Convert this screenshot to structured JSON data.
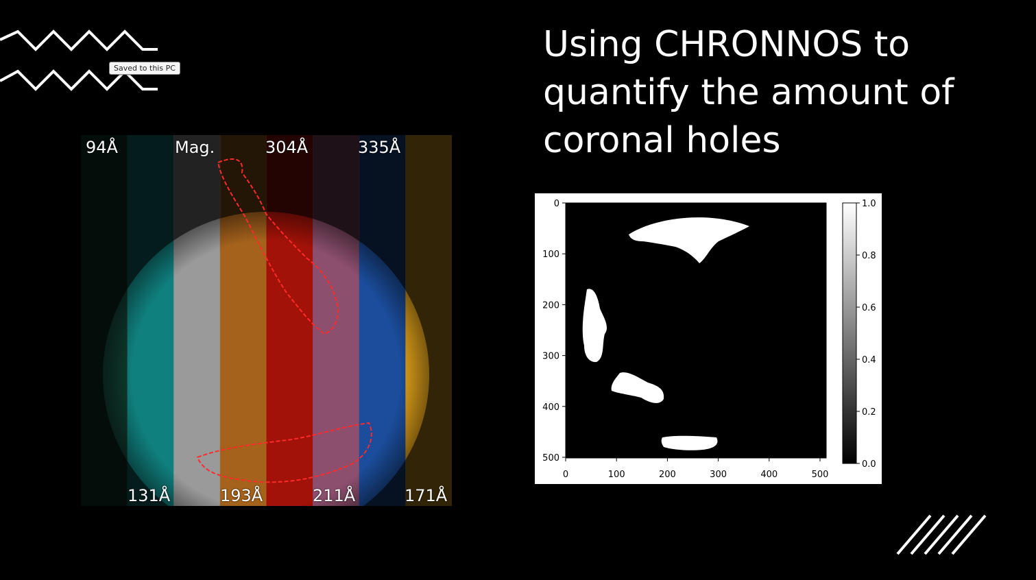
{
  "tooltip": {
    "text": "Saved to this PC"
  },
  "title": {
    "line1": "Using CHRONNOS to",
    "line2": "quantify the amount of",
    "line3": "coronal holes"
  },
  "aia_composite": {
    "bands_top": [
      "94Å",
      "Mag.",
      "304Å",
      "335Å"
    ],
    "bands_bottom": [
      "131Å",
      "193Å",
      "211Å",
      "171Å"
    ],
    "band_colors": [
      "#0f3a2e",
      "#10807e",
      "#9a9a9a",
      "#a5621c",
      "#a31208",
      "#8d4f6e",
      "#1b4d9c",
      "#e2a21a"
    ],
    "boundary_color": "#ff2a2a"
  },
  "mask_plot": {
    "x_ticks": [
      "0",
      "100",
      "200",
      "300",
      "400",
      "500"
    ],
    "y_ticks": [
      "0",
      "100",
      "200",
      "300",
      "400",
      "500"
    ],
    "colorbar_ticks": [
      "1.0",
      "0.8",
      "0.6",
      "0.4",
      "0.2",
      "0.0"
    ]
  },
  "decor": {
    "zigzag_icon": "zigzag-lines-icon",
    "slashes_icon": "diagonal-slashes-icon"
  }
}
